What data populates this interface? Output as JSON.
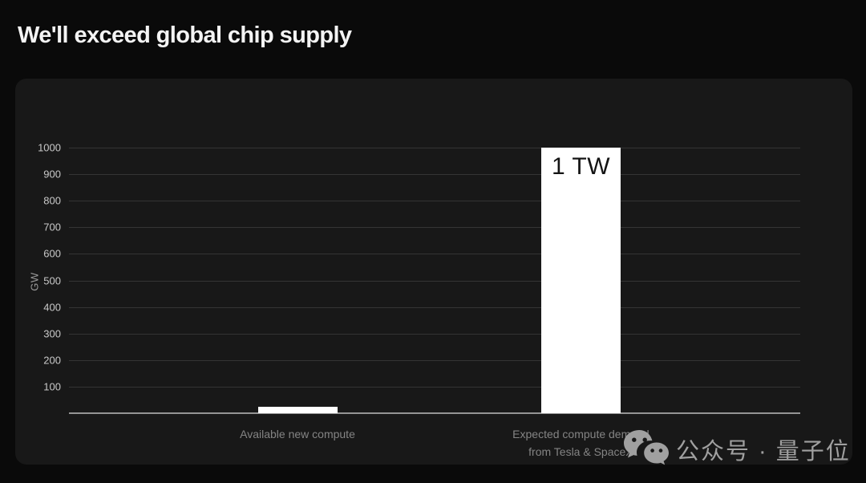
{
  "page": {
    "title": "We'll exceed global chip supply"
  },
  "chart_data": {
    "type": "bar",
    "title": "We'll exceed global chip supply",
    "xlabel": "",
    "ylabel": "GW",
    "ylim": [
      0,
      1000
    ],
    "yticks": [
      100,
      200,
      300,
      400,
      500,
      600,
      700,
      800,
      900,
      1000
    ],
    "grid": true,
    "legend": "none",
    "categories": [
      "Available new compute",
      "Expected compute demand from Tesla & SpaceX"
    ],
    "values": [
      25,
      1000
    ],
    "bars": [
      {
        "label_lines": [
          "Available new compute"
        ],
        "value_gw": 25,
        "bar_label": ""
      },
      {
        "label_lines": [
          "Expected compute demand",
          "from Tesla & SpaceX"
        ],
        "value_gw": 1000,
        "bar_label": "1 TW"
      }
    ],
    "colors": {
      "bar": "#ffffff",
      "grid": "#343434",
      "baseline": "#949494",
      "tick_text": "#c9c9c9",
      "label_text": "#848484",
      "panel_bg": "#181818",
      "page_bg": "#0a0a0a",
      "title_text": "#f4f4f4"
    }
  },
  "watermark": {
    "icon": "wechat-icon",
    "text": "公众号 · 量子位",
    "color": "#a0a0a0"
  }
}
